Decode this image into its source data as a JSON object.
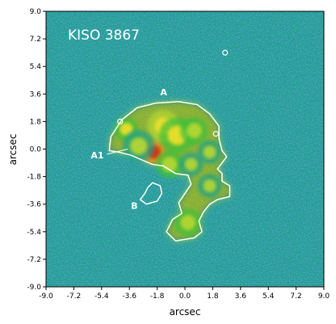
{
  "chart_data": {
    "type": "heatmap",
    "title": "KISO 3867",
    "xlabel": "arcsec",
    "ylabel": "arcsec",
    "xlim": [
      -9.0,
      9.0
    ],
    "ylim": [
      -9.0,
      9.0
    ],
    "xticks": [
      "-9.0",
      "-7.2",
      "-5.4",
      "-3.6",
      "-1.8",
      "0.0",
      "1.8",
      "3.6",
      "5.4",
      "7.2",
      "9.0"
    ],
    "yticks": [
      "-9.0",
      "-7.2",
      "-5.4",
      "-3.6",
      "-1.8",
      "0.0",
      "1.8",
      "3.6",
      "5.4",
      "7.2",
      "9.0"
    ],
    "colormap": [
      "#1a2a8c",
      "#2a6fd0",
      "#1fa08a",
      "#3fbf3a",
      "#b8d833",
      "#f2e12a",
      "#f08a1a",
      "#d42a18"
    ],
    "contour_color": "#ffffff",
    "contour": [
      [
        -4.9,
        -0.1
      ],
      [
        -4.8,
        0.8
      ],
      [
        -4.1,
        1.9
      ],
      [
        -3.1,
        2.7
      ],
      [
        -1.9,
        3.0
      ],
      [
        -0.4,
        3.1
      ],
      [
        0.8,
        2.9
      ],
      [
        1.6,
        2.3
      ],
      [
        2.2,
        1.5
      ],
      [
        2.2,
        0.7
      ],
      [
        2.4,
        -0.1
      ],
      [
        2.7,
        -0.5
      ],
      [
        2.4,
        -0.9
      ],
      [
        2.1,
        -1.3
      ],
      [
        2.4,
        -1.6
      ],
      [
        2.4,
        -2.1
      ],
      [
        2.9,
        -2.4
      ],
      [
        2.9,
        -3.1
      ],
      [
        2.1,
        -3.3
      ],
      [
        1.6,
        -3.6
      ],
      [
        1.2,
        -4.1
      ],
      [
        0.9,
        -4.7
      ],
      [
        1.1,
        -5.4
      ],
      [
        0.6,
        -5.8
      ],
      [
        -0.6,
        -6.0
      ],
      [
        -1.2,
        -5.4
      ],
      [
        -0.8,
        -4.6
      ],
      [
        -0.2,
        -4.2
      ],
      [
        -0.4,
        -3.5
      ],
      [
        0.0,
        -2.9
      ],
      [
        0.4,
        -2.3
      ],
      [
        0.2,
        -1.7
      ],
      [
        -0.6,
        -1.6
      ],
      [
        -1.4,
        -1.1
      ],
      [
        -2.1,
        -1.0
      ],
      [
        -2.8,
        -0.7
      ],
      [
        -3.5,
        -0.4
      ],
      [
        -4.3,
        -0.2
      ]
    ],
    "contour_hole": [
      [
        -2.1,
        -2.2
      ],
      [
        -1.6,
        -2.4
      ],
      [
        -1.5,
        -2.9
      ],
      [
        -1.8,
        -3.4
      ],
      [
        -2.5,
        -3.6
      ],
      [
        -2.9,
        -3.3
      ],
      [
        -2.6,
        -2.9
      ],
      [
        -2.4,
        -2.5
      ]
    ],
    "clumps": [
      {
        "x": -2.0,
        "y": -0.2,
        "level": 1.0,
        "r": 0.6
      },
      {
        "x": -1.4,
        "y": 1.5,
        "level": 0.75,
        "r": 0.8
      },
      {
        "x": -3.8,
        "y": 1.3,
        "level": 0.65,
        "r": 0.6
      },
      {
        "x": -0.5,
        "y": 0.9,
        "level": 0.65,
        "r": 0.9
      },
      {
        "x": 0.6,
        "y": 1.2,
        "level": 0.6,
        "r": 0.7
      },
      {
        "x": -1.0,
        "y": -1.0,
        "level": 0.6,
        "r": 0.7
      },
      {
        "x": 0.4,
        "y": -1.0,
        "level": 0.55,
        "r": 0.6
      },
      {
        "x": 1.6,
        "y": -0.2,
        "level": 0.5,
        "r": 0.6
      },
      {
        "x": 0.2,
        "y": -4.8,
        "level": 0.6,
        "r": 0.7
      },
      {
        "x": 1.6,
        "y": -2.4,
        "level": 0.5,
        "r": 0.6
      },
      {
        "x": -3.0,
        "y": 0.2,
        "level": 0.5,
        "r": 0.8
      }
    ],
    "small_circles": [
      {
        "x": 2.6,
        "y": 6.3
      },
      {
        "x": 2.0,
        "y": 1.0
      },
      {
        "x": -4.2,
        "y": 1.8
      }
    ],
    "annotations": [
      {
        "text": "A",
        "x": -1.6,
        "y": 3.5
      },
      {
        "text": "A1",
        "x": -6.1,
        "y": -0.6
      },
      {
        "text": "B",
        "x": -3.5,
        "y": -3.9
      }
    ]
  }
}
